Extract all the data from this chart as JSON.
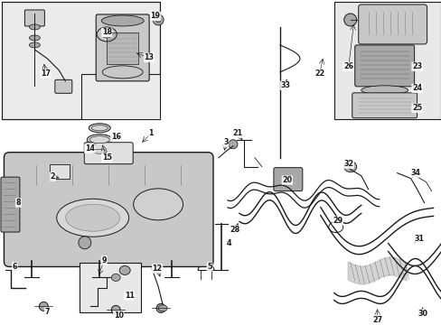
{
  "bg_color": "#ffffff",
  "line_color": "#1a1a1a",
  "gray1": "#c8c8c8",
  "gray2": "#e0e0e0",
  "gray3": "#a8a8a8",
  "figsize": [
    4.89,
    3.6
  ],
  "dpi": 100
}
